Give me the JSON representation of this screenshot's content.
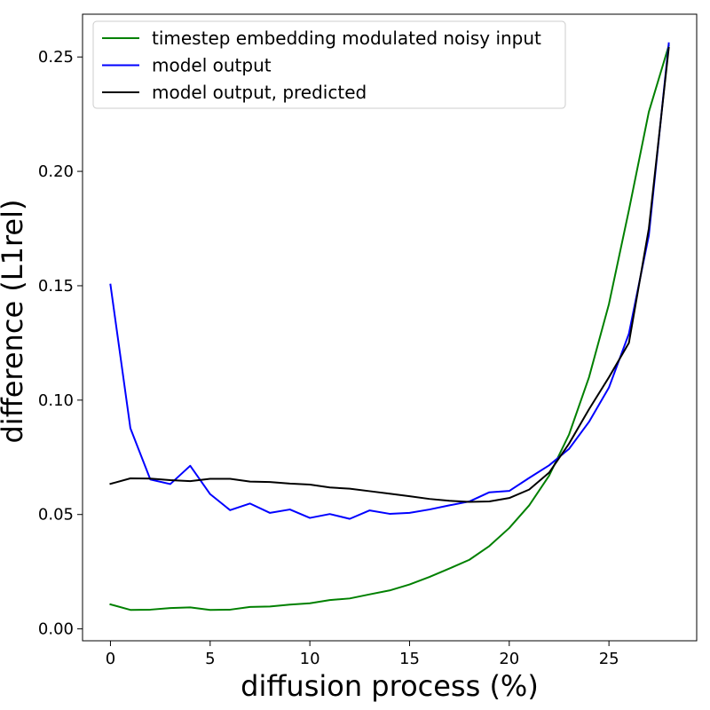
{
  "chart_data": {
    "type": "line",
    "title": "",
    "xlabel": "diffusion process (%)",
    "ylabel": "difference (L1rel)",
    "xlim": [
      -1.4,
      29.4
    ],
    "ylim": [
      -0.0052,
      0.2687
    ],
    "xticks": [
      0,
      5,
      10,
      15,
      20,
      25
    ],
    "xtick_labels": [
      "0",
      "5",
      "10",
      "15",
      "20",
      "25"
    ],
    "yticks": [
      0.0,
      0.05,
      0.1,
      0.15,
      0.2,
      0.25
    ],
    "ytick_labels": [
      "0.00",
      "0.05",
      "0.10",
      "0.15",
      "0.20",
      "0.25"
    ],
    "legend_position": "top-left",
    "grid": false,
    "series": [
      {
        "name": "timestep embedding modulated noisy input",
        "color": "#008000",
        "x": [
          0,
          1,
          2,
          3,
          4,
          5,
          6,
          7,
          8,
          9,
          10,
          11,
          12,
          13,
          14,
          15,
          16,
          17,
          18,
          19,
          20,
          21,
          22,
          23,
          24,
          25,
          26,
          27,
          28
        ],
        "values": [
          0.0107,
          0.0083,
          0.0084,
          0.0091,
          0.0094,
          0.0083,
          0.0084,
          0.0096,
          0.0098,
          0.0106,
          0.0112,
          0.0126,
          0.0133,
          0.0151,
          0.0168,
          0.0194,
          0.0227,
          0.0264,
          0.0302,
          0.0362,
          0.0441,
          0.054,
          0.067,
          0.085,
          0.11,
          0.142,
          0.183,
          0.226,
          0.255
        ]
      },
      {
        "name": "model output",
        "color": "#0000ff",
        "x": [
          0,
          1,
          2,
          3,
          4,
          5,
          6,
          7,
          8,
          9,
          10,
          11,
          12,
          13,
          14,
          15,
          16,
          17,
          18,
          19,
          20,
          21,
          22,
          23,
          24,
          25,
          26,
          27,
          28
        ],
        "values": [
          0.1505,
          0.0877,
          0.0653,
          0.0633,
          0.0713,
          0.0589,
          0.0519,
          0.0548,
          0.0507,
          0.0522,
          0.0485,
          0.0502,
          0.0481,
          0.0518,
          0.0503,
          0.0507,
          0.0522,
          0.054,
          0.0557,
          0.0597,
          0.0603,
          0.066,
          0.0715,
          0.0787,
          0.0905,
          0.1055,
          0.129,
          0.172,
          0.256
        ]
      },
      {
        "name": "model output, predicted",
        "color": "#000000",
        "x": [
          0,
          1,
          2,
          3,
          4,
          5,
          6,
          7,
          8,
          9,
          10,
          11,
          12,
          13,
          14,
          15,
          16,
          17,
          18,
          19,
          20,
          21,
          22,
          23,
          24,
          25,
          26,
          27,
          28
        ],
        "values": [
          0.0634,
          0.0658,
          0.0657,
          0.065,
          0.0646,
          0.0656,
          0.0656,
          0.0644,
          0.0642,
          0.0635,
          0.0631,
          0.0618,
          0.0613,
          0.0602,
          0.0591,
          0.058,
          0.0568,
          0.056,
          0.0555,
          0.0557,
          0.0572,
          0.0609,
          0.0683,
          0.081,
          0.096,
          0.11,
          0.125,
          0.175,
          0.254
        ]
      }
    ]
  }
}
